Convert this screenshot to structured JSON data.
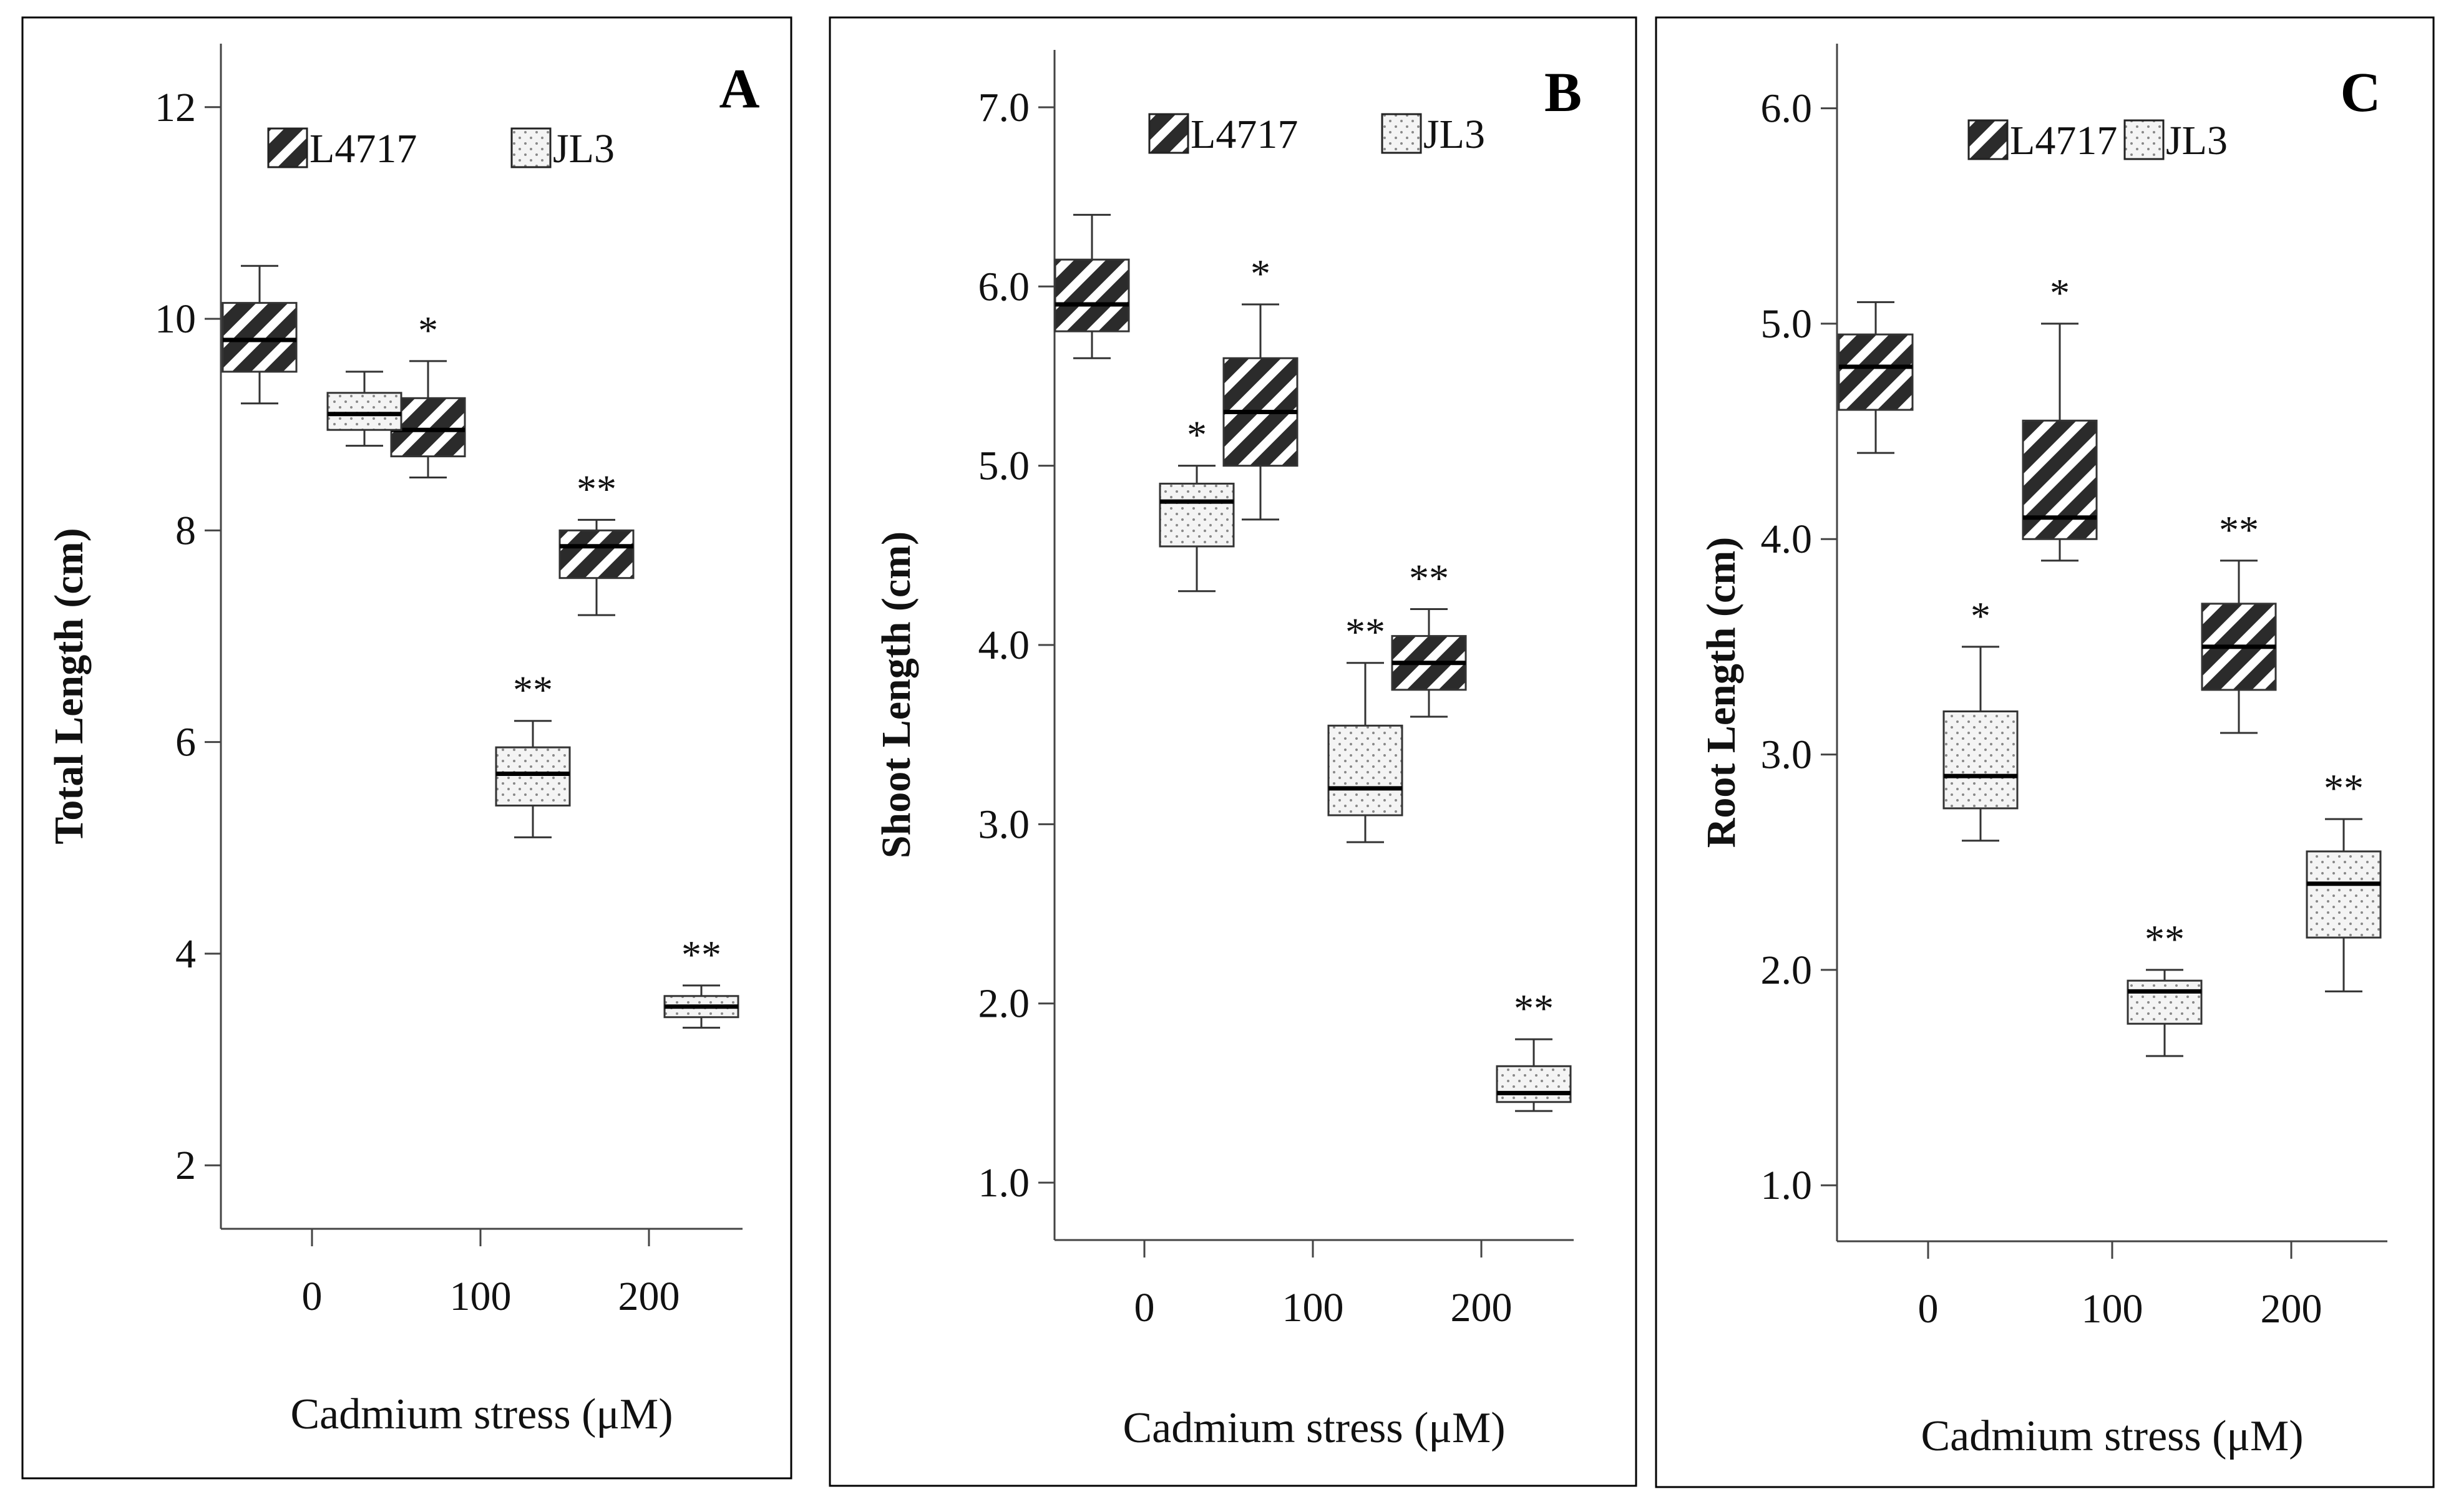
{
  "colors": {
    "L4717_fill": "#2b2b2b",
    "JL3_fill": "#f4f4f4",
    "frame": "#000000"
  },
  "chart_data": [
    {
      "type": "box",
      "panel_label": "A",
      "xlabel": "Cadmium stress (μM)",
      "ylabel": "Total Length (cm)",
      "categories": [
        "0",
        "100",
        "200"
      ],
      "yticks": [
        "2",
        "4",
        "6",
        "8",
        "10",
        "12"
      ],
      "ylim": [
        1.4,
        12.6
      ],
      "legend_position": "top-left",
      "series": [
        {
          "name": "L4717",
          "pattern": "diagonal-hatch",
          "boxes": [
            {
              "min": 9.2,
              "q1": 9.5,
              "median": 9.8,
              "q3": 10.15,
              "max": 10.5,
              "sig": ""
            },
            {
              "min": 8.5,
              "q1": 8.7,
              "median": 8.95,
              "q3": 9.25,
              "max": 9.6,
              "sig": "*"
            },
            {
              "min": 7.2,
              "q1": 7.55,
              "median": 7.85,
              "q3": 8.0,
              "max": 8.1,
              "sig": "**"
            }
          ]
        },
        {
          "name": "JL3",
          "pattern": "dotted",
          "boxes": [
            {
              "min": 8.8,
              "q1": 8.95,
              "median": 9.1,
              "q3": 9.3,
              "max": 9.5,
              "sig": ""
            },
            {
              "min": 5.1,
              "q1": 5.4,
              "median": 5.7,
              "q3": 5.95,
              "max": 6.2,
              "sig": "**"
            },
            {
              "min": 3.3,
              "q1": 3.4,
              "median": 3.5,
              "q3": 3.6,
              "max": 3.7,
              "sig": "**"
            }
          ]
        }
      ]
    },
    {
      "type": "box",
      "panel_label": "B",
      "xlabel": "Cadmium stress (μM)",
      "ylabel": "Shoot Length (cm)",
      "categories": [
        "0",
        "100",
        "200"
      ],
      "yticks": [
        "1.0",
        "2.0",
        "3.0",
        "4.0",
        "5.0",
        "6.0",
        "7.0"
      ],
      "ylim": [
        0.68,
        7.32
      ],
      "legend_position": "top-center",
      "series": [
        {
          "name": "L4717",
          "pattern": "diagonal-hatch",
          "boxes": [
            {
              "min": 5.6,
              "q1": 5.75,
              "median": 5.9,
              "q3": 6.15,
              "max": 6.4,
              "sig": ""
            },
            {
              "min": 4.7,
              "q1": 5.0,
              "median": 5.3,
              "q3": 5.6,
              "max": 5.9,
              "sig": "*"
            },
            {
              "min": 3.6,
              "q1": 3.75,
              "median": 3.9,
              "q3": 4.05,
              "max": 4.2,
              "sig": "**"
            }
          ]
        },
        {
          "name": "JL3",
          "pattern": "dotted",
          "boxes": [
            {
              "min": 4.3,
              "q1": 4.55,
              "median": 4.8,
              "q3": 4.9,
              "max": 5.0,
              "sig": "*"
            },
            {
              "min": 2.9,
              "q1": 3.05,
              "median": 3.2,
              "q3": 3.55,
              "max": 3.9,
              "sig": "**"
            },
            {
              "min": 1.4,
              "q1": 1.45,
              "median": 1.5,
              "q3": 1.65,
              "max": 1.8,
              "sig": "**"
            }
          ]
        }
      ]
    },
    {
      "type": "box",
      "panel_label": "C",
      "xlabel": "Cadmium stress (μM)",
      "ylabel": "Root Length (cm)",
      "categories": [
        "0",
        "100",
        "200"
      ],
      "yticks": [
        "1.0",
        "2.0",
        "3.0",
        "4.0",
        "5.0",
        "6.0"
      ],
      "ylim": [
        0.74,
        6.3
      ],
      "legend_position": "top-center",
      "series": [
        {
          "name": "L4717",
          "pattern": "diagonal-hatch",
          "boxes": [
            {
              "min": 4.4,
              "q1": 4.6,
              "median": 4.8,
              "q3": 4.95,
              "max": 5.1,
              "sig": ""
            },
            {
              "min": 3.9,
              "q1": 4.0,
              "median": 4.1,
              "q3": 4.55,
              "max": 5.0,
              "sig": "*"
            },
            {
              "min": 3.1,
              "q1": 3.3,
              "median": 3.5,
              "q3": 3.7,
              "max": 3.9,
              "sig": "**"
            }
          ]
        },
        {
          "name": "JL3",
          "pattern": "dotted",
          "boxes": [
            {
              "min": 2.6,
              "q1": 2.75,
              "median": 2.9,
              "q3": 3.2,
              "max": 3.5,
              "sig": "*"
            },
            {
              "min": 1.6,
              "q1": 1.75,
              "median": 1.9,
              "q3": 1.95,
              "max": 2.0,
              "sig": "**"
            },
            {
              "min": 1.9,
              "q1": 2.15,
              "median": 2.4,
              "q3": 2.55,
              "max": 2.7,
              "sig": "**"
            }
          ]
        }
      ]
    }
  ]
}
